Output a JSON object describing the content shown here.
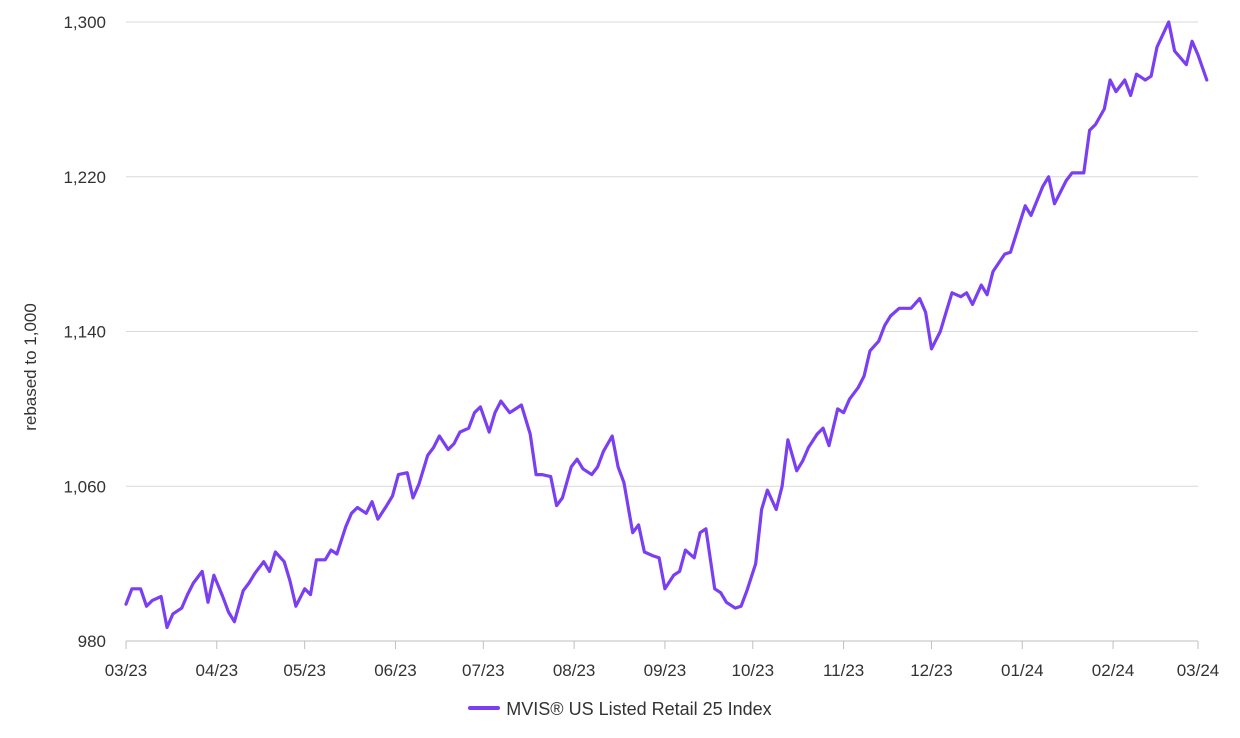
{
  "chart_data": {
    "type": "line",
    "ylabel": "rebased to 1,000",
    "ylim": [
      980,
      1300
    ],
    "yticks": [
      980,
      1060,
      1140,
      1220,
      1300
    ],
    "ytick_labels": [
      "980",
      "1,060",
      "1,140",
      "1,220",
      "1,300"
    ],
    "xticks": [
      "03/23",
      "04/23",
      "05/23",
      "06/23",
      "07/23",
      "08/23",
      "09/23",
      "10/23",
      "11/23",
      "12/23",
      "01/24",
      "02/24",
      "03/24"
    ],
    "grid": "horizontal",
    "legend_position": "bottom",
    "series": [
      {
        "name": "MVIS® US Listed Retail 25 Index",
        "color": "#7B3FF2",
        "x": [
          "2023-03-01",
          "2023-03-03",
          "2023-03-06",
          "2023-03-08",
          "2023-03-10",
          "2023-03-13",
          "2023-03-15",
          "2023-03-17",
          "2023-03-20",
          "2023-03-22",
          "2023-03-24",
          "2023-03-27",
          "2023-03-29",
          "2023-03-31",
          "2023-04-03",
          "2023-04-05",
          "2023-04-07",
          "2023-04-10",
          "2023-04-12",
          "2023-04-14",
          "2023-04-17",
          "2023-04-19",
          "2023-04-21",
          "2023-04-24",
          "2023-04-26",
          "2023-04-28",
          "2023-05-01",
          "2023-05-03",
          "2023-05-05",
          "2023-05-08",
          "2023-05-10",
          "2023-05-12",
          "2023-05-15",
          "2023-05-17",
          "2023-05-19",
          "2023-05-22",
          "2023-05-24",
          "2023-05-26",
          "2023-05-29",
          "2023-05-31",
          "2023-06-02",
          "2023-06-05",
          "2023-06-07",
          "2023-06-09",
          "2023-06-12",
          "2023-06-14",
          "2023-06-16",
          "2023-06-19",
          "2023-06-21",
          "2023-06-23",
          "2023-06-26",
          "2023-06-28",
          "2023-06-30",
          "2023-07-03",
          "2023-07-05",
          "2023-07-07",
          "2023-07-10",
          "2023-07-12",
          "2023-07-14",
          "2023-07-17",
          "2023-07-19",
          "2023-07-21",
          "2023-07-24",
          "2023-07-26",
          "2023-07-28",
          "2023-07-31",
          "2023-08-02",
          "2023-08-04",
          "2023-08-07",
          "2023-08-09",
          "2023-08-11",
          "2023-08-14",
          "2023-08-16",
          "2023-08-18",
          "2023-08-21",
          "2023-08-23",
          "2023-08-25",
          "2023-08-28",
          "2023-08-30",
          "2023-09-01",
          "2023-09-04",
          "2023-09-06",
          "2023-09-08",
          "2023-09-11",
          "2023-09-13",
          "2023-09-15",
          "2023-09-18",
          "2023-09-20",
          "2023-09-22",
          "2023-09-25",
          "2023-09-27",
          "2023-09-29",
          "2023-10-02",
          "2023-10-04",
          "2023-10-06",
          "2023-10-09",
          "2023-10-11",
          "2023-10-13",
          "2023-10-16",
          "2023-10-18",
          "2023-10-20",
          "2023-10-23",
          "2023-10-25",
          "2023-10-27",
          "2023-10-30",
          "2023-11-01",
          "2023-11-03",
          "2023-11-06",
          "2023-11-08",
          "2023-11-10",
          "2023-11-13",
          "2023-11-15",
          "2023-11-17",
          "2023-11-20",
          "2023-11-22",
          "2023-11-24",
          "2023-11-27",
          "2023-11-29",
          "2023-12-01",
          "2023-12-04",
          "2023-12-06",
          "2023-12-08",
          "2023-12-11",
          "2023-12-13",
          "2023-12-15",
          "2023-12-18",
          "2023-12-20",
          "2023-12-22",
          "2023-12-26",
          "2023-12-28",
          "2024-01-02",
          "2024-01-04",
          "2024-01-08",
          "2024-01-10",
          "2024-01-12",
          "2024-01-16",
          "2024-01-18",
          "2024-01-22",
          "2024-01-24",
          "2024-01-26",
          "2024-01-29",
          "2024-01-31",
          "2024-02-02",
          "2024-02-05",
          "2024-02-07",
          "2024-02-09",
          "2024-02-12",
          "2024-02-14",
          "2024-02-16",
          "2024-02-20",
          "2024-02-22",
          "2024-02-26",
          "2024-02-28",
          "2024-03-01",
          "2024-03-04"
        ],
        "values": [
          999,
          1007,
          1007,
          998,
          1001,
          1003,
          987,
          994,
          997,
          1004,
          1010,
          1016,
          1000,
          1014,
          1003,
          995,
          990,
          1006,
          1010,
          1015,
          1021,
          1016,
          1026,
          1021,
          1011,
          998,
          1007,
          1004,
          1022,
          1022,
          1027,
          1025,
          1039,
          1046,
          1049,
          1046,
          1052,
          1043,
          1050,
          1055,
          1066,
          1067,
          1054,
          1061,
          1076,
          1080,
          1086,
          1079,
          1082,
          1088,
          1090,
          1098,
          1101,
          1088,
          1098,
          1104,
          1098,
          1100,
          1102,
          1087,
          1066,
          1066,
          1065,
          1050,
          1054,
          1070,
          1074,
          1069,
          1066,
          1070,
          1078,
          1086,
          1070,
          1062,
          1036,
          1040,
          1026,
          1024,
          1023,
          1007,
          1014,
          1016,
          1027,
          1023,
          1036,
          1038,
          1007,
          1005,
          1000,
          997,
          998,
          1006,
          1020,
          1048,
          1058,
          1048,
          1060,
          1084,
          1068,
          1073,
          1080,
          1087,
          1090,
          1081,
          1100,
          1098,
          1105,
          1111,
          1117,
          1130,
          1135,
          1143,
          1148,
          1152,
          1152,
          1152,
          1157,
          1150,
          1131,
          1140,
          1150,
          1160,
          1158,
          1160,
          1154,
          1164,
          1159,
          1171,
          1180,
          1181,
          1205,
          1200,
          1215,
          1220,
          1206,
          1218,
          1222,
          1222,
          1244,
          1247,
          1255,
          1270,
          1264,
          1270,
          1262,
          1273,
          1270,
          1272,
          1287,
          1300,
          1285,
          1278,
          1290,
          1283,
          1270
        ]
      }
    ]
  }
}
